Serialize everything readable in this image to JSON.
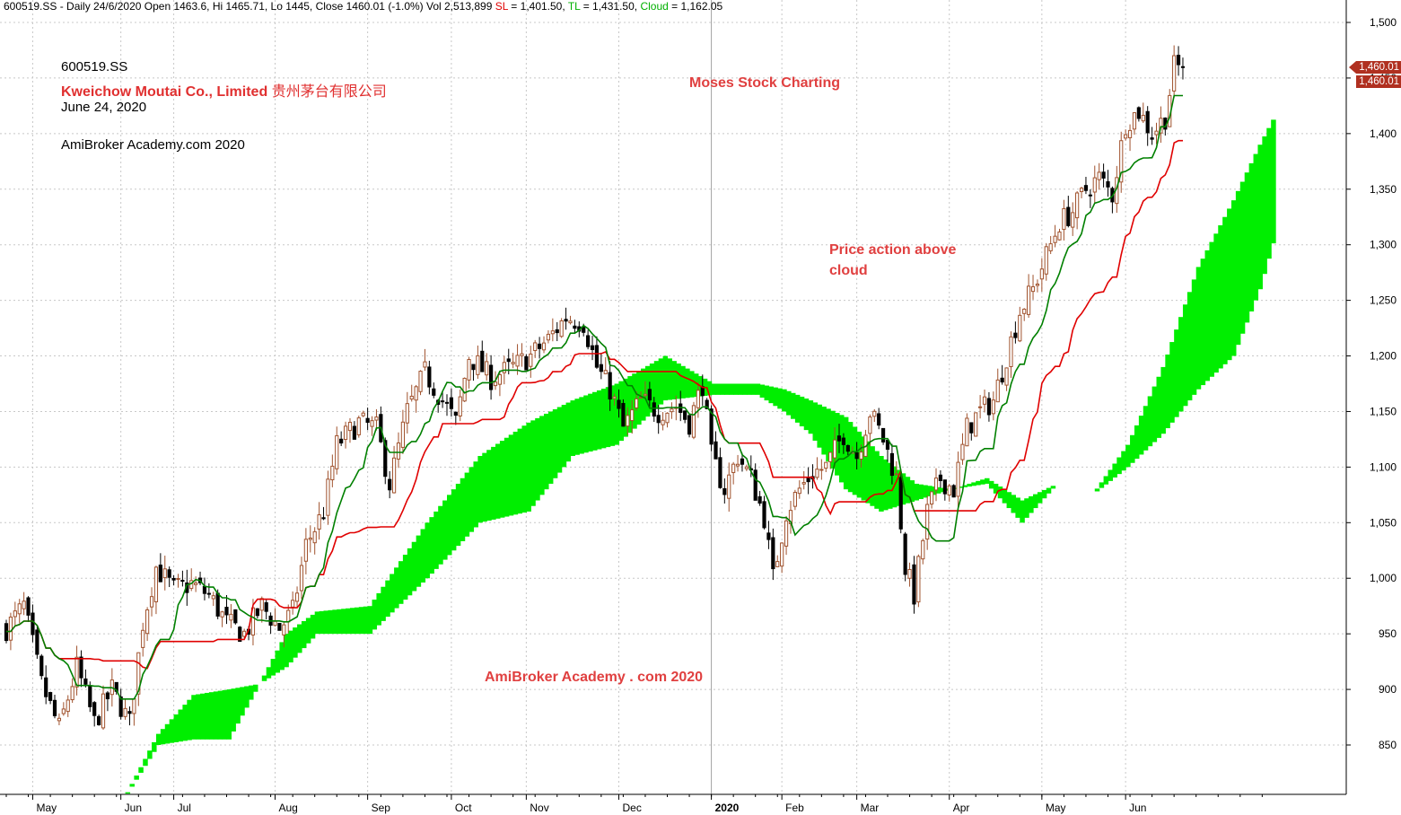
{
  "header": {
    "prefix": "600519.SS - Daily 24/6/2020 Open 1463.6, Hi 1465.71, Lo 1445, Close 1460.01 (-1.0%) Vol 2,513,899 ",
    "sl_label": "SL",
    "sl_value": " = 1,401.50, ",
    "tl_label": "TL",
    "tl_value": " = 1,431.50, ",
    "cloud_label": "Cloud",
    "cloud_value": " = 1,162.05"
  },
  "annotations": {
    "symbol": "600519.SS",
    "company": "Kweichow Moutai Co., Limited",
    "company_cn": "贵州茅台有限公司",
    "date": "June 24, 2020",
    "site": "AmiBroker Academy.com  2020",
    "moses": "Moses Stock Charting",
    "price_line1": "Price action above",
    "price_line2": "cloud",
    "ami": "AmiBroker Academy . com 2020"
  },
  "price_tags": [
    "1,460.01",
    "1,460.01"
  ],
  "colors": {
    "bull_candle": "#a0522d",
    "bear_candle": "#000000",
    "tenkan": "#008000",
    "kijun": "#e00000",
    "cloud_bull": "#00ee00",
    "cloud_bear": "#ff7f2a",
    "grid": "#c8c8c8"
  },
  "chart_data": {
    "type": "candlestick",
    "ylim": [
      800,
      1520
    ],
    "yticks": [
      850,
      900,
      950,
      1000,
      1050,
      1100,
      1150,
      1200,
      1250,
      1300,
      1350,
      1400,
      1450,
      1500
    ],
    "ytick_labels": [
      "850",
      "900",
      "950",
      "1,000",
      "1,050",
      "1,100",
      "1,150",
      "1,200",
      "1,250",
      "1,300",
      "1,350",
      "1,400",
      "1,450",
      "1,500"
    ],
    "month_labels": [
      "May",
      "Jun",
      "Jul",
      "Aug",
      "Sep",
      "Oct",
      "Nov",
      "Dec",
      "2020",
      "Feb",
      "Mar",
      "Apr",
      "May",
      "Jun"
    ],
    "month_start_index": [
      6,
      26,
      38,
      61,
      82,
      101,
      118,
      139,
      160,
      176,
      193,
      214,
      235,
      254
    ],
    "n_sessions": 288,
    "grid": true,
    "close_anchors": [
      [
        0,
        955
      ],
      [
        4,
        975
      ],
      [
        8,
        905
      ],
      [
        12,
        865
      ],
      [
        16,
        920
      ],
      [
        20,
        870
      ],
      [
        24,
        900
      ],
      [
        28,
        870
      ],
      [
        31,
        960
      ],
      [
        34,
        1010
      ],
      [
        38,
        990
      ],
      [
        42,
        995
      ],
      [
        46,
        985
      ],
      [
        50,
        960
      ],
      [
        54,
        950
      ],
      [
        58,
        975
      ],
      [
        62,
        955
      ],
      [
        65,
        970
      ],
      [
        68,
        1030
      ],
      [
        72,
        1060
      ],
      [
        75,
        1120
      ],
      [
        80,
        1140
      ],
      [
        84,
        1135
      ],
      [
        87,
        1085
      ],
      [
        91,
        1150
      ],
      [
        95,
        1185
      ],
      [
        99,
        1160
      ],
      [
        102,
        1140
      ],
      [
        105,
        1200
      ],
      [
        110,
        1180
      ],
      [
        115,
        1190
      ],
      [
        119,
        1200
      ],
      [
        123,
        1215
      ],
      [
        127,
        1235
      ],
      [
        131,
        1230
      ],
      [
        134,
        1190
      ],
      [
        137,
        1170
      ],
      [
        140,
        1135
      ],
      [
        144,
        1160
      ],
      [
        148,
        1150
      ],
      [
        152,
        1155
      ],
      [
        155,
        1140
      ],
      [
        158,
        1175
      ],
      [
        160,
        1110
      ],
      [
        163,
        1080
      ],
      [
        166,
        1110
      ],
      [
        169,
        1090
      ],
      [
        172,
        1055
      ],
      [
        174,
        1000
      ],
      [
        177,
        1060
      ],
      [
        180,
        1080
      ],
      [
        183,
        1095
      ],
      [
        186,
        1100
      ],
      [
        190,
        1130
      ],
      [
        193,
        1110
      ],
      [
        196,
        1150
      ],
      [
        199,
        1125
      ],
      [
        202,
        1090
      ],
      [
        204,
        1010
      ],
      [
        206,
        985
      ],
      [
        209,
        1060
      ],
      [
        212,
        1090
      ],
      [
        215,
        1080
      ],
      [
        218,
        1135
      ],
      [
        221,
        1150
      ],
      [
        224,
        1160
      ],
      [
        227,
        1200
      ],
      [
        230,
        1240
      ],
      [
        233,
        1260
      ],
      [
        236,
        1290
      ],
      [
        239,
        1320
      ],
      [
        242,
        1330
      ],
      [
        245,
        1350
      ],
      [
        248,
        1360
      ],
      [
        251,
        1345
      ],
      [
        254,
        1410
      ],
      [
        257,
        1420
      ],
      [
        260,
        1400
      ],
      [
        263,
        1415
      ],
      [
        265,
        1460
      ],
      [
        267,
        1460.01
      ]
    ],
    "last_close": 1460.01,
    "tenkan_at_last": 1431.5,
    "kijun_at_last": 1401.5,
    "cloud_last": 1162.05,
    "cloud_span_a_anchors": [
      [
        26,
        800
      ],
      [
        34,
        860
      ],
      [
        42,
        895
      ],
      [
        50,
        900
      ],
      [
        57,
        905
      ],
      [
        63,
        950
      ],
      [
        70,
        970
      ],
      [
        82,
        975
      ],
      [
        95,
        1050
      ],
      [
        107,
        1110
      ],
      [
        118,
        1140
      ],
      [
        128,
        1160
      ],
      [
        138,
        1175
      ],
      [
        149,
        1200
      ],
      [
        160,
        1175
      ],
      [
        170,
        1175
      ],
      [
        176,
        1170
      ],
      [
        182,
        1160
      ],
      [
        190,
        1145
      ],
      [
        198,
        1110
      ],
      [
        206,
        1085
      ],
      [
        214,
        1080
      ],
      [
        222,
        1090
      ],
      [
        230,
        1070
      ],
      [
        238,
        1085
      ],
      [
        246,
        1075
      ],
      [
        254,
        1120
      ],
      [
        262,
        1190
      ],
      [
        270,
        1280
      ],
      [
        278,
        1340
      ],
      [
        284,
        1390
      ],
      [
        288,
        1420
      ]
    ],
    "cloud_span_b_anchors": [
      [
        26,
        800
      ],
      [
        34,
        850
      ],
      [
        42,
        855
      ],
      [
        50,
        855
      ],
      [
        57,
        905
      ],
      [
        63,
        920
      ],
      [
        70,
        950
      ],
      [
        82,
        950
      ],
      [
        95,
        1000
      ],
      [
        107,
        1050
      ],
      [
        118,
        1060
      ],
      [
        128,
        1110
      ],
      [
        138,
        1120
      ],
      [
        149,
        1160
      ],
      [
        160,
        1165
      ],
      [
        170,
        1165
      ],
      [
        176,
        1150
      ],
      [
        182,
        1130
      ],
      [
        190,
        1080
      ],
      [
        198,
        1060
      ],
      [
        206,
        1070
      ],
      [
        214,
        1080
      ],
      [
        222,
        1085
      ],
      [
        230,
        1050
      ],
      [
        238,
        1085
      ],
      [
        246,
        1075
      ],
      [
        254,
        1100
      ],
      [
        262,
        1130
      ],
      [
        270,
        1170
      ],
      [
        278,
        1200
      ],
      [
        284,
        1260
      ],
      [
        288,
        1315
      ]
    ]
  }
}
